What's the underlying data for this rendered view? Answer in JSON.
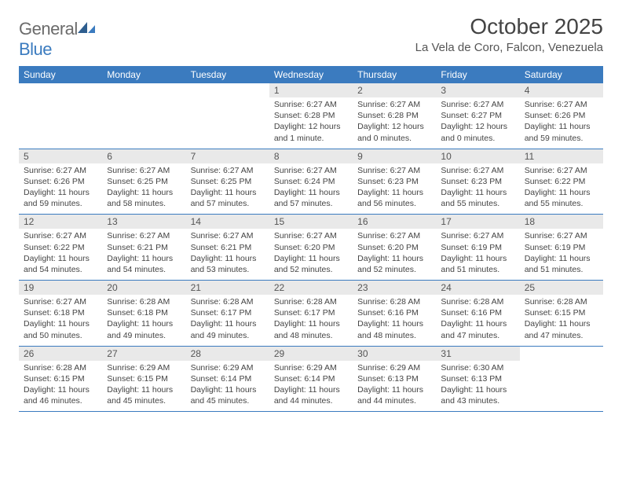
{
  "brand": {
    "general": "General",
    "blue": "Blue"
  },
  "title": "October 2025",
  "location": "La Vela de Coro, Falcon, Venezuela",
  "colors": {
    "header_bg": "#3b7bbf",
    "header_text": "#ffffff",
    "daynum_bg": "#e9e9e9",
    "week_border": "#3b7bbf",
    "text": "#444444",
    "logo_gray": "#6b6b6b",
    "logo_blue": "#3b7bbf"
  },
  "day_names": [
    "Sunday",
    "Monday",
    "Tuesday",
    "Wednesday",
    "Thursday",
    "Friday",
    "Saturday"
  ],
  "weeks": [
    [
      {
        "n": "",
        "sr": "",
        "ss": "",
        "dl": ""
      },
      {
        "n": "",
        "sr": "",
        "ss": "",
        "dl": ""
      },
      {
        "n": "",
        "sr": "",
        "ss": "",
        "dl": ""
      },
      {
        "n": "1",
        "sr": "Sunrise: 6:27 AM",
        "ss": "Sunset: 6:28 PM",
        "dl": "Daylight: 12 hours and 1 minute."
      },
      {
        "n": "2",
        "sr": "Sunrise: 6:27 AM",
        "ss": "Sunset: 6:28 PM",
        "dl": "Daylight: 12 hours and 0 minutes."
      },
      {
        "n": "3",
        "sr": "Sunrise: 6:27 AM",
        "ss": "Sunset: 6:27 PM",
        "dl": "Daylight: 12 hours and 0 minutes."
      },
      {
        "n": "4",
        "sr": "Sunrise: 6:27 AM",
        "ss": "Sunset: 6:26 PM",
        "dl": "Daylight: 11 hours and 59 minutes."
      }
    ],
    [
      {
        "n": "5",
        "sr": "Sunrise: 6:27 AM",
        "ss": "Sunset: 6:26 PM",
        "dl": "Daylight: 11 hours and 59 minutes."
      },
      {
        "n": "6",
        "sr": "Sunrise: 6:27 AM",
        "ss": "Sunset: 6:25 PM",
        "dl": "Daylight: 11 hours and 58 minutes."
      },
      {
        "n": "7",
        "sr": "Sunrise: 6:27 AM",
        "ss": "Sunset: 6:25 PM",
        "dl": "Daylight: 11 hours and 57 minutes."
      },
      {
        "n": "8",
        "sr": "Sunrise: 6:27 AM",
        "ss": "Sunset: 6:24 PM",
        "dl": "Daylight: 11 hours and 57 minutes."
      },
      {
        "n": "9",
        "sr": "Sunrise: 6:27 AM",
        "ss": "Sunset: 6:23 PM",
        "dl": "Daylight: 11 hours and 56 minutes."
      },
      {
        "n": "10",
        "sr": "Sunrise: 6:27 AM",
        "ss": "Sunset: 6:23 PM",
        "dl": "Daylight: 11 hours and 55 minutes."
      },
      {
        "n": "11",
        "sr": "Sunrise: 6:27 AM",
        "ss": "Sunset: 6:22 PM",
        "dl": "Daylight: 11 hours and 55 minutes."
      }
    ],
    [
      {
        "n": "12",
        "sr": "Sunrise: 6:27 AM",
        "ss": "Sunset: 6:22 PM",
        "dl": "Daylight: 11 hours and 54 minutes."
      },
      {
        "n": "13",
        "sr": "Sunrise: 6:27 AM",
        "ss": "Sunset: 6:21 PM",
        "dl": "Daylight: 11 hours and 54 minutes."
      },
      {
        "n": "14",
        "sr": "Sunrise: 6:27 AM",
        "ss": "Sunset: 6:21 PM",
        "dl": "Daylight: 11 hours and 53 minutes."
      },
      {
        "n": "15",
        "sr": "Sunrise: 6:27 AM",
        "ss": "Sunset: 6:20 PM",
        "dl": "Daylight: 11 hours and 52 minutes."
      },
      {
        "n": "16",
        "sr": "Sunrise: 6:27 AM",
        "ss": "Sunset: 6:20 PM",
        "dl": "Daylight: 11 hours and 52 minutes."
      },
      {
        "n": "17",
        "sr": "Sunrise: 6:27 AM",
        "ss": "Sunset: 6:19 PM",
        "dl": "Daylight: 11 hours and 51 minutes."
      },
      {
        "n": "18",
        "sr": "Sunrise: 6:27 AM",
        "ss": "Sunset: 6:19 PM",
        "dl": "Daylight: 11 hours and 51 minutes."
      }
    ],
    [
      {
        "n": "19",
        "sr": "Sunrise: 6:27 AM",
        "ss": "Sunset: 6:18 PM",
        "dl": "Daylight: 11 hours and 50 minutes."
      },
      {
        "n": "20",
        "sr": "Sunrise: 6:28 AM",
        "ss": "Sunset: 6:18 PM",
        "dl": "Daylight: 11 hours and 49 minutes."
      },
      {
        "n": "21",
        "sr": "Sunrise: 6:28 AM",
        "ss": "Sunset: 6:17 PM",
        "dl": "Daylight: 11 hours and 49 minutes."
      },
      {
        "n": "22",
        "sr": "Sunrise: 6:28 AM",
        "ss": "Sunset: 6:17 PM",
        "dl": "Daylight: 11 hours and 48 minutes."
      },
      {
        "n": "23",
        "sr": "Sunrise: 6:28 AM",
        "ss": "Sunset: 6:16 PM",
        "dl": "Daylight: 11 hours and 48 minutes."
      },
      {
        "n": "24",
        "sr": "Sunrise: 6:28 AM",
        "ss": "Sunset: 6:16 PM",
        "dl": "Daylight: 11 hours and 47 minutes."
      },
      {
        "n": "25",
        "sr": "Sunrise: 6:28 AM",
        "ss": "Sunset: 6:15 PM",
        "dl": "Daylight: 11 hours and 47 minutes."
      }
    ],
    [
      {
        "n": "26",
        "sr": "Sunrise: 6:28 AM",
        "ss": "Sunset: 6:15 PM",
        "dl": "Daylight: 11 hours and 46 minutes."
      },
      {
        "n": "27",
        "sr": "Sunrise: 6:29 AM",
        "ss": "Sunset: 6:15 PM",
        "dl": "Daylight: 11 hours and 45 minutes."
      },
      {
        "n": "28",
        "sr": "Sunrise: 6:29 AM",
        "ss": "Sunset: 6:14 PM",
        "dl": "Daylight: 11 hours and 45 minutes."
      },
      {
        "n": "29",
        "sr": "Sunrise: 6:29 AM",
        "ss": "Sunset: 6:14 PM",
        "dl": "Daylight: 11 hours and 44 minutes."
      },
      {
        "n": "30",
        "sr": "Sunrise: 6:29 AM",
        "ss": "Sunset: 6:13 PM",
        "dl": "Daylight: 11 hours and 44 minutes."
      },
      {
        "n": "31",
        "sr": "Sunrise: 6:30 AM",
        "ss": "Sunset: 6:13 PM",
        "dl": "Daylight: 11 hours and 43 minutes."
      },
      {
        "n": "",
        "sr": "",
        "ss": "",
        "dl": ""
      }
    ]
  ]
}
